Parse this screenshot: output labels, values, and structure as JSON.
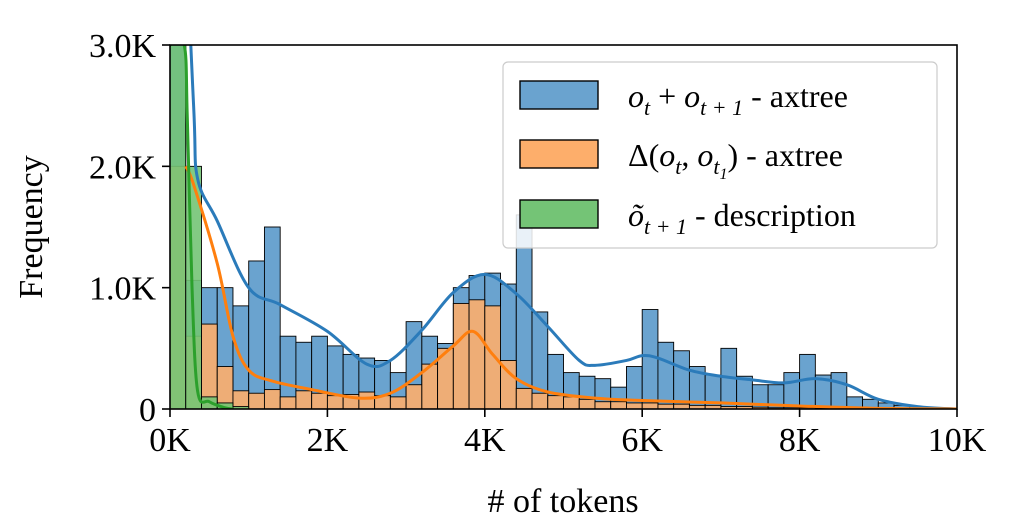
{
  "chart_data": {
    "type": "bar",
    "title": "",
    "xlabel": "# of tokens",
    "ylabel": "Frequency",
    "xlim": [
      0,
      10000
    ],
    "ylim": [
      0,
      3000
    ],
    "xticks": [
      0,
      2000,
      4000,
      6000,
      8000,
      10000
    ],
    "xtick_labels": [
      "0K",
      "2K",
      "4K",
      "6K",
      "8K",
      "10K"
    ],
    "yticks": [
      0,
      1000,
      2000,
      3000
    ],
    "ytick_labels": [
      "0",
      "1.0K",
      "2.0K",
      "3.0K"
    ],
    "grid": false,
    "legend_position": "top-right",
    "bin_width": 200,
    "series": [
      {
        "name": "o_t + o_{t+1} - axtree",
        "color": "#6aa3cf",
        "kde_color": "#2b7bba",
        "bin_start": [
          0,
          200,
          400,
          600,
          800,
          1000,
          1200,
          1400,
          1600,
          1800,
          2000,
          2200,
          2400,
          2600,
          2800,
          3000,
          3200,
          3400,
          3600,
          3800,
          4000,
          4200,
          4400,
          4600,
          4800,
          5000,
          5200,
          5400,
          5600,
          5800,
          6000,
          6200,
          6400,
          6600,
          6800,
          7000,
          7200,
          7400,
          7600,
          7800,
          8000,
          8200,
          8400,
          8600,
          8800,
          9000,
          9200,
          9400,
          9600,
          9800
        ],
        "values": [
          4000,
          1060,
          1000,
          1000,
          850,
          1220,
          1500,
          600,
          550,
          600,
          520,
          450,
          420,
          400,
          300,
          720,
          600,
          540,
          1000,
          1100,
          1120,
          1030,
          1600,
          800,
          450,
          300,
          270,
          250,
          180,
          350,
          820,
          550,
          480,
          350,
          280,
          500,
          270,
          200,
          200,
          300,
          450,
          280,
          300,
          100,
          80,
          50,
          30,
          20,
          10,
          5
        ],
        "kde": [
          [
            0,
            5500
          ],
          [
            150,
            4500
          ],
          [
            300,
            2500
          ],
          [
            350,
            1900
          ],
          [
            600,
            1550
          ],
          [
            1000,
            1000
          ],
          [
            1400,
            860
          ],
          [
            2000,
            640
          ],
          [
            2500,
            370
          ],
          [
            2800,
            400
          ],
          [
            3200,
            650
          ],
          [
            3600,
            960
          ],
          [
            4000,
            1110
          ],
          [
            4400,
            950
          ],
          [
            4800,
            680
          ],
          [
            5200,
            400
          ],
          [
            5400,
            360
          ],
          [
            5800,
            400
          ],
          [
            6000,
            440
          ],
          [
            6200,
            420
          ],
          [
            6600,
            320
          ],
          [
            7000,
            270
          ],
          [
            7400,
            240
          ],
          [
            7800,
            215
          ],
          [
            8200,
            250
          ],
          [
            8600,
            200
          ],
          [
            9000,
            80
          ],
          [
            9500,
            20
          ],
          [
            10000,
            0
          ]
        ]
      },
      {
        "name": "Δ(o_t, o_{t_1}) - axtree",
        "color": "#fdae6b",
        "kde_color": "#ff7f0e",
        "bin_start": [
          0,
          200,
          400,
          600,
          800,
          1000,
          1200,
          1400,
          1600,
          1800,
          2000,
          2200,
          2400,
          2600,
          2800,
          3000,
          3200,
          3400,
          3600,
          3800,
          4000,
          4200,
          4400,
          4600,
          4800,
          5000,
          5200,
          5400,
          5600,
          5800,
          6000,
          6200,
          6400,
          6600,
          6800,
          7000,
          7200,
          7400,
          7600,
          7800,
          8000,
          8200,
          8400,
          8600,
          8800,
          9000
        ],
        "values": [
          2000,
          600,
          700,
          350,
          150,
          130,
          160,
          100,
          150,
          130,
          110,
          120,
          140,
          110,
          100,
          200,
          370,
          500,
          870,
          900,
          850,
          400,
          170,
          130,
          110,
          100,
          80,
          60,
          60,
          50,
          50,
          40,
          40,
          30,
          30,
          20,
          20,
          15,
          10,
          10,
          10,
          5,
          5,
          5,
          5,
          5
        ],
        "kde": [
          [
            200,
            2000
          ],
          [
            300,
            1850
          ],
          [
            600,
            1200
          ],
          [
            800,
            600
          ],
          [
            1000,
            320
          ],
          [
            1300,
            230
          ],
          [
            1800,
            160
          ],
          [
            2400,
            90
          ],
          [
            2800,
            130
          ],
          [
            3200,
            300
          ],
          [
            3600,
            520
          ],
          [
            3850,
            640
          ],
          [
            4100,
            450
          ],
          [
            4400,
            250
          ],
          [
            4800,
            140
          ],
          [
            5400,
            90
          ],
          [
            6000,
            70
          ],
          [
            7000,
            50
          ],
          [
            8000,
            25
          ],
          [
            9000,
            5
          ],
          [
            10000,
            0
          ]
        ]
      },
      {
        "name": "õ_{t+1} - description",
        "color": "#74c476",
        "kde_color": "#2ca02c",
        "bin_start": [
          0,
          200,
          400,
          600,
          800
        ],
        "values": [
          3000,
          2000,
          100,
          50,
          20
        ],
        "kde": [
          [
            0,
            3000
          ],
          [
            180,
            3000
          ],
          [
            220,
            2400
          ],
          [
            280,
            1000
          ],
          [
            350,
            150
          ],
          [
            500,
            60
          ],
          [
            700,
            10
          ],
          [
            800,
            0
          ]
        ]
      }
    ]
  },
  "legend": [
    {
      "main": "o",
      "sub": "t",
      "mid": " + ",
      "main2": "o",
      "sub2": "t + 1",
      "suffix": " - axtree",
      "color": "#6aa3cf"
    },
    {
      "delta": "Δ(",
      "main": "o",
      "sub": "t",
      "mid": ", ",
      "main2": "o",
      "sub2": "t",
      "subsub": "1",
      "close": ")",
      "suffix": " - axtree",
      "color": "#fdae6b"
    },
    {
      "main": "õ",
      "sub": "t + 1",
      "suffix": " - description",
      "color": "#74c476"
    }
  ]
}
